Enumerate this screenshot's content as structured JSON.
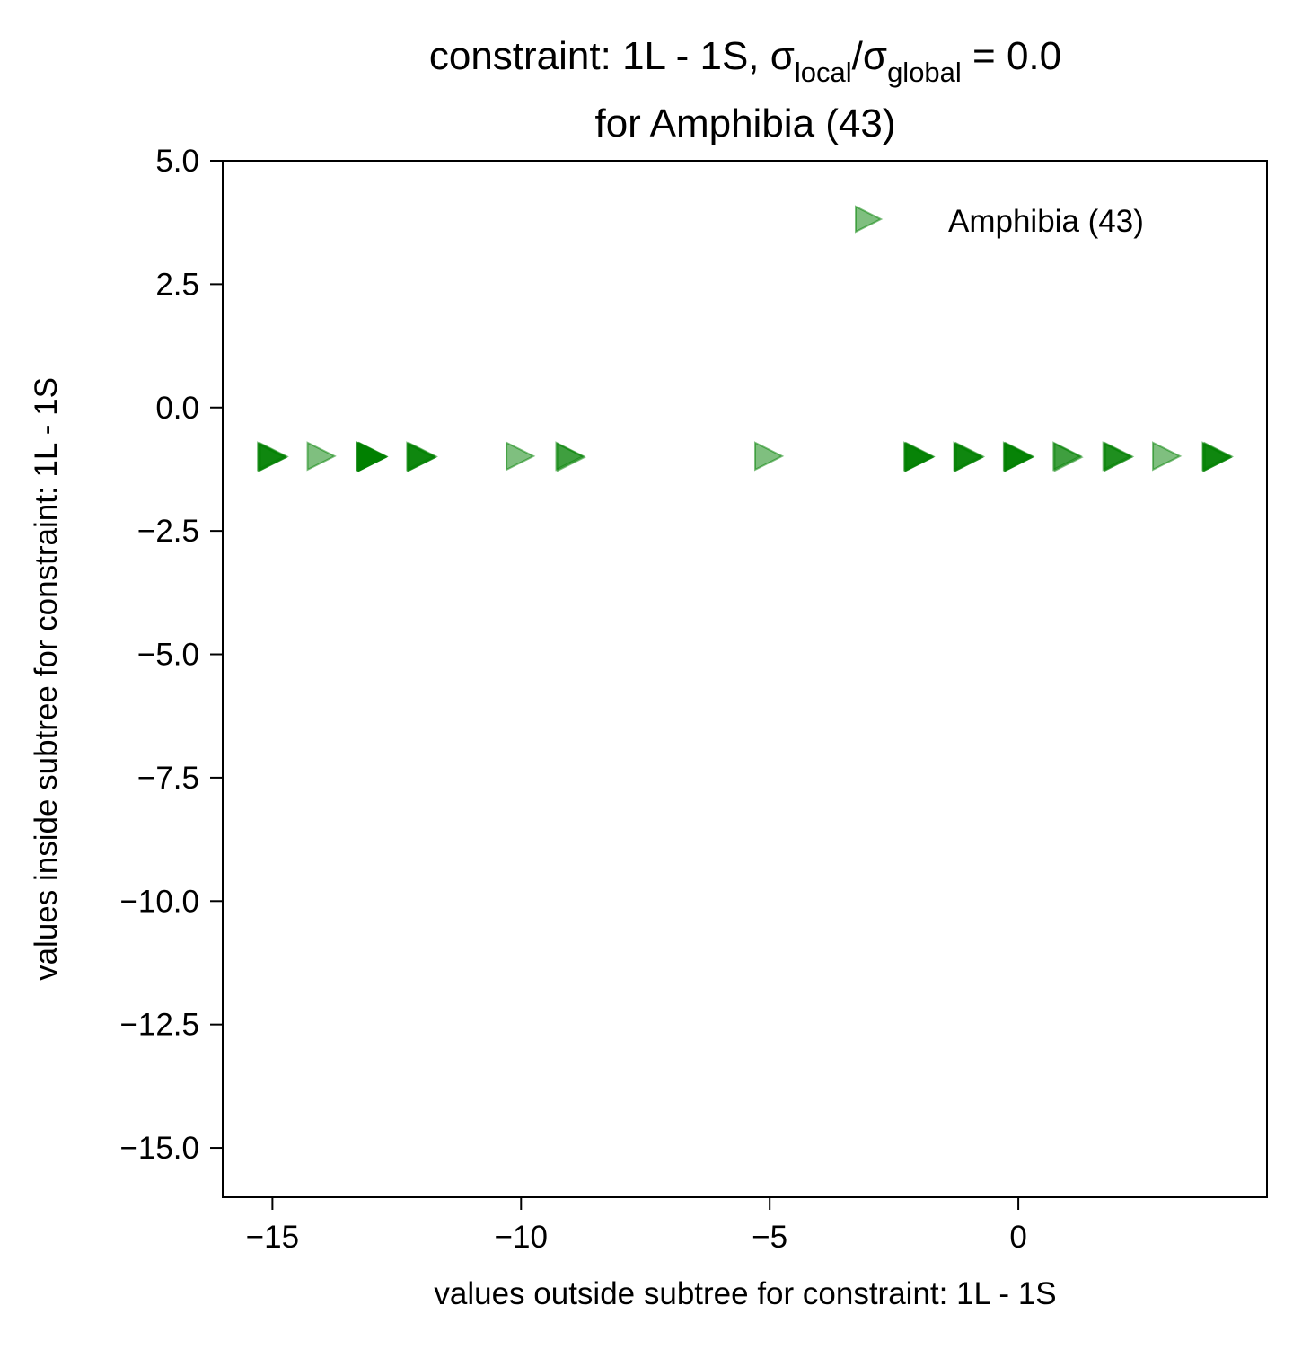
{
  "chart_data": {
    "type": "scatter",
    "title": {
      "line1_prefix": "constraint: 1L - 1S, σ",
      "sub_local": "local",
      "slash": "/σ",
      "sub_global": "global",
      "line1_suffix": " =  0.0",
      "line2": "for Amphibia (43)"
    },
    "xlabel": "values outside subtree for constraint: 1L - 1S",
    "ylabel": "values inside subtree for constraint: 1L - 1S",
    "xlim": [
      -16,
      5
    ],
    "ylim": [
      -16,
      5
    ],
    "xticks": [
      {
        "value": -15,
        "label": "−15"
      },
      {
        "value": -10,
        "label": "−10"
      },
      {
        "value": -5,
        "label": "−5"
      },
      {
        "value": 0,
        "label": "0"
      }
    ],
    "yticks": [
      {
        "value": 5.0,
        "label": "5.0"
      },
      {
        "value": 2.5,
        "label": "2.5"
      },
      {
        "value": 0.0,
        "label": "0.0"
      },
      {
        "value": -2.5,
        "label": "−2.5"
      },
      {
        "value": -5.0,
        "label": "−5.0"
      },
      {
        "value": -7.5,
        "label": "−7.5"
      },
      {
        "value": -10.0,
        "label": "−10.0"
      },
      {
        "value": -12.5,
        "label": "−12.5"
      },
      {
        "value": -15.0,
        "label": "−15.0"
      }
    ],
    "grid": false,
    "legend_position": "top-right",
    "series": [
      {
        "name": "Amphibia (43)",
        "color": "#008000",
        "marker": "triangle-right",
        "marker_alpha": 0.5,
        "points": [
          {
            "x": -15,
            "y": -1,
            "overlap": 4
          },
          {
            "x": -14,
            "y": -1,
            "overlap": 1
          },
          {
            "x": -13,
            "y": -1,
            "overlap": 8
          },
          {
            "x": -12,
            "y": -1,
            "overlap": 4
          },
          {
            "x": -10,
            "y": -1,
            "overlap": 1
          },
          {
            "x": -9,
            "y": -1,
            "overlap": 2
          },
          {
            "x": -5,
            "y": -1,
            "overlap": 1
          },
          {
            "x": -2,
            "y": -1,
            "overlap": 5
          },
          {
            "x": -1,
            "y": -1,
            "overlap": 4
          },
          {
            "x": 0,
            "y": -1,
            "overlap": 5
          },
          {
            "x": 1,
            "y": -1,
            "overlap": 2
          },
          {
            "x": 2,
            "y": -1,
            "overlap": 3
          },
          {
            "x": 3,
            "y": -1,
            "overlap": 1
          },
          {
            "x": 4,
            "y": -1,
            "overlap": 4
          }
        ]
      }
    ]
  }
}
